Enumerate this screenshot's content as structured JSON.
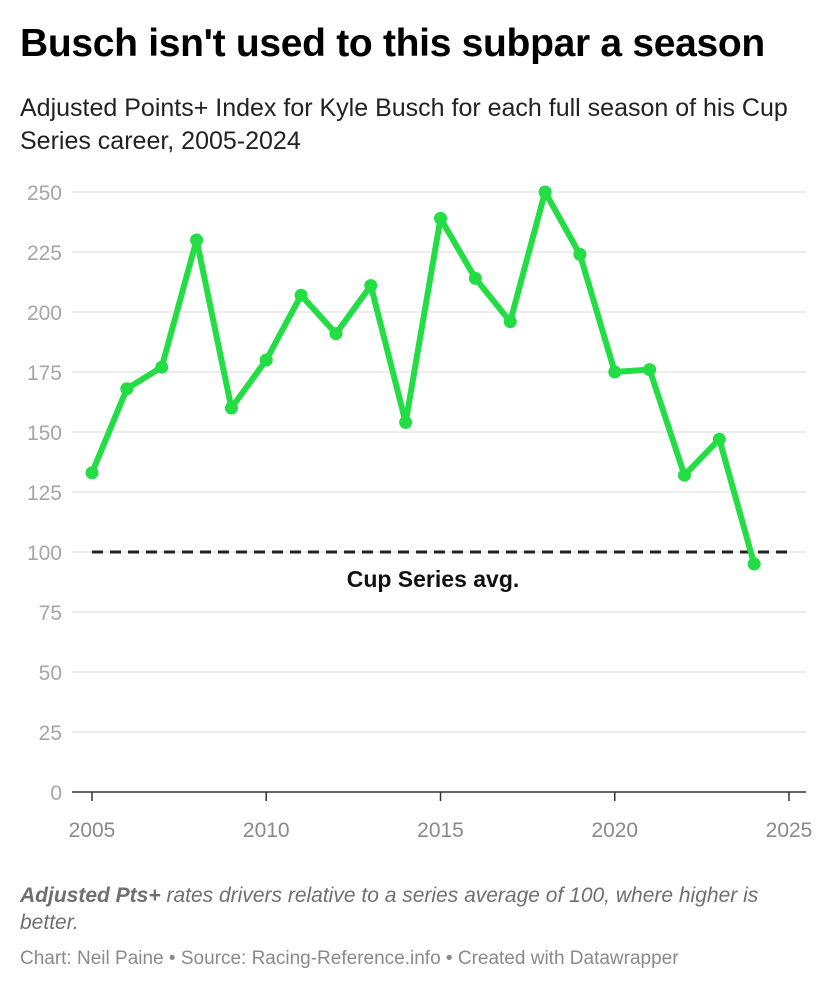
{
  "header": {
    "title": "Busch isn't used to this subpar a season",
    "subtitle": "Adjusted Points+ Index for Kyle Busch for each full season of his Cup Series career, 2005-2024"
  },
  "footer": {
    "note_bold": "Adjusted Pts+",
    "note_rest": " rates drivers relative to a series average of 100, where higher is better.",
    "credit": "Chart: Neil Paine • Source: Racing-Reference.info • Created with Datawrapper"
  },
  "chart_data": {
    "type": "line",
    "title": "Busch isn't used to this subpar a season",
    "xlabel": "",
    "ylabel": "",
    "xlim": [
      2005,
      2025
    ],
    "ylim": [
      0,
      250
    ],
    "x_ticks": [
      2005,
      2010,
      2015,
      2020,
      2025
    ],
    "y_ticks": [
      0,
      25,
      50,
      75,
      100,
      125,
      150,
      175,
      200,
      225,
      250
    ],
    "grid": true,
    "series": [
      {
        "color": "#22dd44",
        "x": [
          2005,
          2006,
          2007,
          2008,
          2009,
          2010,
          2011,
          2012,
          2013,
          2014,
          2015,
          2016,
          2017,
          2018,
          2019,
          2020,
          2021,
          2022,
          2023,
          2024
        ],
        "values": [
          133,
          168,
          177,
          230,
          160,
          180,
          207,
          191,
          211,
          154,
          239,
          214,
          196,
          250,
          224,
          175,
          176,
          132,
          147,
          95
        ]
      }
    ],
    "reference_line": {
      "y": 100,
      "label": "Cup Series avg.",
      "color": "#222222"
    }
  }
}
